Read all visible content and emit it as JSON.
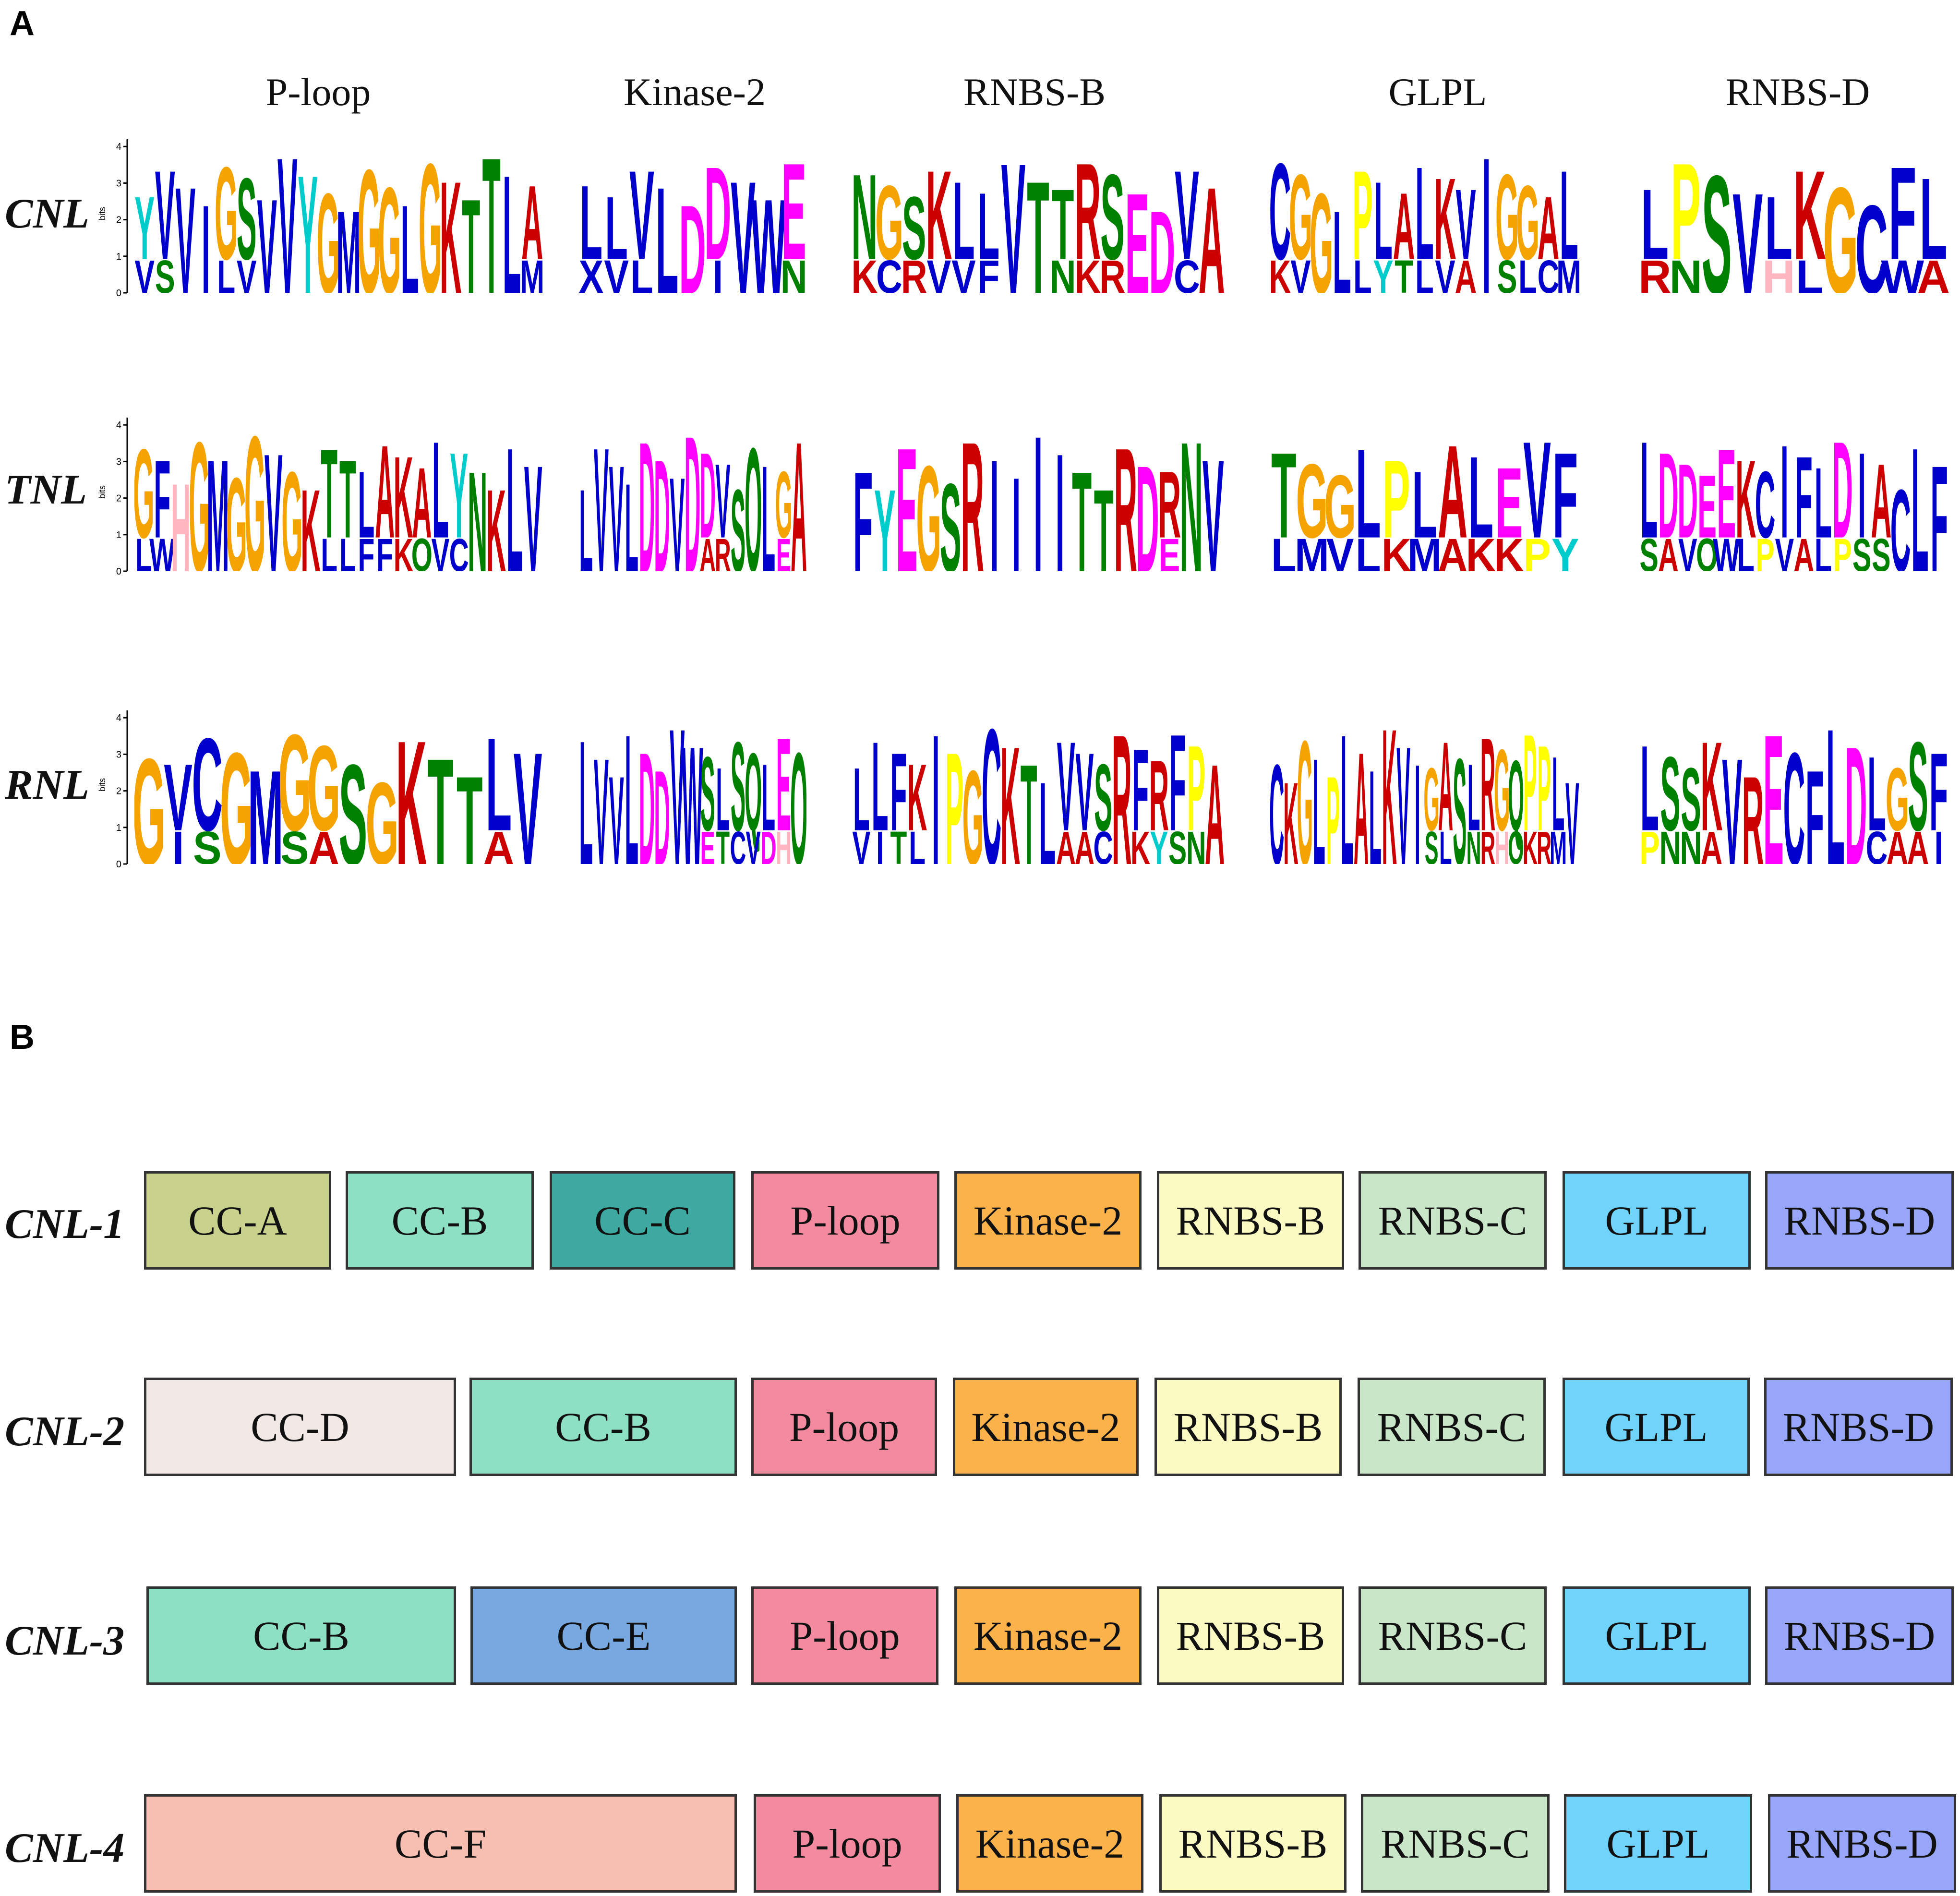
{
  "panels": {
    "a": "A",
    "b": "B"
  },
  "motif_headers": [
    "P-loop",
    "Kinase-2",
    "RNBS-B",
    "GLPL",
    "RNBS-D"
  ],
  "axis": {
    "label": "bits",
    "ticks": [
      "0",
      "1",
      "2",
      "3",
      "4"
    ]
  },
  "colors": {
    "G": "#f4a300",
    "A": "#cc0000",
    "C": "#0000cc",
    "D": "#ff00ff",
    "E": "#ff00ff",
    "F": "#0000cc",
    "H": "#ffb6c1",
    "I": "#0000cc",
    "K": "#cc0000",
    "L": "#0000cc",
    "M": "#0000cc",
    "N": "#008000",
    "P": "#ffff00",
    "Q": "#008000",
    "R": "#cc0000",
    "S": "#008000",
    "T": "#008000",
    "V": "#0000cc",
    "W": "#0000cc",
    "Y": "#00cccc",
    "X": "#0000cc"
  },
  "logos": [
    {
      "row": "CNL",
      "motifs": [
        [
          "YVVIGSVVYGMGGLGKTTLA",
          "VS  LV             M"
        ],
        [
          "LLVLDDVWE",
          "XVL  I  N"
        ],
        [
          "NGSKLLVTTRSEDVA",
          "KCRVVF  NKR  C"
        ],
        [
          "CGGLPLALKVIGGAL",
          "KV  LYTLVA SLCM"
        ],
        [
          "LPSVLKGCFL",
          "RN  HL  WA"
        ]
      ]
    },
    {
      "row": "TNL",
      "motifs": [
        [
          "GFHGMGGVGKTTLAKALYNKLV",
          "LW        LLFFKQVC"
        ],
        [
          "LVVLDDVDDVSQLGA",
          "        AR   E"
        ],
        [
          "FYEGSRIIIITTRDRNV",
          "              E"
        ],
        [
          "TGGLPLALEVF",
          "LMVLKMAKKPY"
        ],
        [
          "LDDEEKCIFLDIACLF",
          "SAVQWLPVALPSS"
        ]
      ]
    },
    {
      "row": "RNL",
      "motifs": [
        [
          "GVCGMGGSGKTTLV",
          " IS  SA     A"
        ],
        [
          "LVVLDDVWSLSQLEQ",
          "        ETCVDH"
        ],
        [
          "LLFKIPGCKTLVVSRFRFPA",
          "VITL       AAC KYSN"
        ],
        [
          "CKGLPLALKVIGASLRGQPPLV",
          "           SL NRHQKRM"
        ],
        [
          "LSSKVRECFLDLGSF",
          "PNNA       CAAI"
        ]
      ]
    }
  ],
  "architectures": [
    {
      "label": "CNL-1",
      "domains": [
        "CC-A",
        "CC-B",
        "CC-C",
        "P-loop",
        "Kinase-2",
        "RNBS-B",
        "RNBS-C",
        "GLPL",
        "RNBS-D"
      ]
    },
    {
      "label": "CNL-2",
      "domains": [
        "CC-D",
        "CC-B",
        "P-loop",
        "Kinase-2",
        "RNBS-B",
        "RNBS-C",
        "GLPL",
        "RNBS-D"
      ]
    },
    {
      "label": "CNL-3",
      "domains": [
        "CC-B",
        "CC-E",
        "P-loop",
        "Kinase-2",
        "RNBS-B",
        "RNBS-C",
        "GLPL",
        "RNBS-D"
      ]
    },
    {
      "label": "CNL-4",
      "domains": [
        "CC-F",
        "P-loop",
        "Kinase-2",
        "RNBS-B",
        "RNBS-C",
        "GLPL",
        "RNBS-D"
      ]
    }
  ],
  "domain_colors": {
    "CC-A": "#c8d28c",
    "CC-B": "#8ee0c4",
    "CC-C": "#3ea9a0",
    "CC-D": "#f2e8e6",
    "CC-E": "#78a8e0",
    "CC-F": "#f6bfb2",
    "P-loop": "#f48aa0",
    "Kinase-2": "#fbb24a",
    "RNBS-B": "#fbfac2",
    "RNBS-C": "#c9e6c8",
    "GLPL": "#6fd3fa",
    "RNBS-D": "#98a6fa"
  }
}
